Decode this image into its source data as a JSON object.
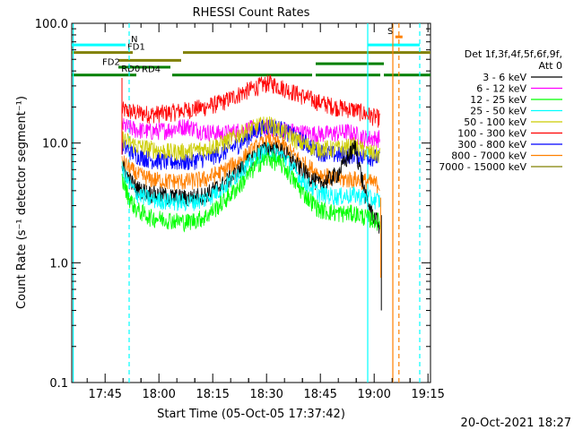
{
  "chart_data": {
    "type": "line",
    "title": "RHESSI Count Rates",
    "xlabel": "Start Time (05-Oct-05 17:37:42)",
    "ylabel": "Count Rate (s⁻¹ detector segment⁻¹)",
    "yscale": "log",
    "ylim": [
      0.1,
      100
    ],
    "xlim_minutes": [
      -2,
      98
    ],
    "x_ticks": [
      "17:45",
      "18:00",
      "18:15",
      "18:30",
      "18:45",
      "19:00",
      "19:15"
    ],
    "x_tick_minutes": [
      7.3,
      22.3,
      37.3,
      52.3,
      67.3,
      82.3,
      97.3
    ],
    "y_ticks": [
      "0.1",
      "1.0",
      "10.0",
      "100.0"
    ],
    "y_tick_values": [
      0.1,
      1,
      10,
      100
    ],
    "legend_header": [
      "Det 1f,3f,4f,5f,6f,9f,",
      "Att 0"
    ],
    "series": [
      {
        "name": "3 - 6 keV",
        "color": "#000000",
        "x": [
          12,
          14,
          16,
          20,
          25,
          30,
          35,
          40,
          45,
          50,
          53,
          57,
          62,
          67,
          72,
          77,
          80,
          82,
          84
        ],
        "y": [
          6.5,
          5.0,
          4.2,
          3.8,
          3.6,
          3.5,
          3.7,
          4.5,
          6.0,
          8.5,
          9.0,
          8.5,
          6.0,
          4.5,
          5.5,
          9.5,
          3.5,
          2.5,
          2.0
        ]
      },
      {
        "name": "6 - 12 keV",
        "color": "#ff00ff",
        "x": [
          12,
          16,
          20,
          25,
          30,
          35,
          40,
          45,
          50,
          55,
          60,
          65,
          70,
          75,
          80,
          84
        ],
        "y": [
          14,
          13,
          12.5,
          13,
          14,
          12.5,
          12,
          12.8,
          13.5,
          13.5,
          12.5,
          12,
          12,
          12.5,
          11,
          11
        ]
      },
      {
        "name": "12 - 25 keV",
        "color": "#00ff00",
        "x": [
          12,
          14,
          16,
          20,
          25,
          30,
          35,
          40,
          45,
          50,
          53,
          57,
          62,
          67,
          72,
          77,
          80,
          82,
          84
        ],
        "y": [
          5.0,
          3.5,
          2.8,
          2.4,
          2.3,
          2.2,
          2.4,
          3.2,
          4.5,
          6.8,
          7.5,
          6.5,
          4.0,
          2.8,
          2.6,
          2.6,
          2.4,
          2.3,
          2.2
        ]
      },
      {
        "name": "25 - 50 keV",
        "color": "#00ffff",
        "x": [
          12,
          14,
          16,
          20,
          25,
          30,
          35,
          40,
          45,
          50,
          53,
          57,
          62,
          67,
          72,
          77,
          80,
          82,
          84
        ],
        "y": [
          6.0,
          4.5,
          3.8,
          3.4,
          3.3,
          3.2,
          3.4,
          4.2,
          5.8,
          8.0,
          8.8,
          7.8,
          5.0,
          3.8,
          3.6,
          3.7,
          3.5,
          3.4,
          3.3
        ]
      },
      {
        "name": "50 - 100 keV",
        "color": "#cccc00",
        "x": [
          12,
          16,
          20,
          25,
          30,
          35,
          40,
          45,
          50,
          53,
          57,
          62,
          67,
          72,
          77,
          80,
          84
        ],
        "y": [
          11,
          9.5,
          9.0,
          8.5,
          8.5,
          9.0,
          10,
          12,
          14,
          14.5,
          12.5,
          10,
          9,
          9,
          9.5,
          8.5,
          8
        ]
      },
      {
        "name": "100 - 300 keV",
        "color": "#ff0000",
        "x": [
          12,
          16,
          20,
          25,
          30,
          35,
          40,
          45,
          50,
          53,
          57,
          62,
          67,
          72,
          77,
          80,
          84
        ],
        "y": [
          19,
          18,
          17.5,
          18,
          19,
          20,
          22,
          26,
          30,
          32,
          29,
          25,
          22,
          20,
          19,
          17.5,
          16
        ]
      },
      {
        "name": "300 - 800 keV",
        "color": "#0000ff",
        "x": [
          12,
          16,
          20,
          25,
          30,
          35,
          40,
          45,
          50,
          53,
          57,
          62,
          67,
          72,
          77,
          80,
          84
        ],
        "y": [
          9.5,
          8.0,
          7.3,
          7.0,
          7.0,
          7.5,
          8.3,
          10,
          13,
          14,
          13,
          10.5,
          8.5,
          8.0,
          8.0,
          7.8,
          7.5
        ]
      },
      {
        "name": "800 - 7000 keV",
        "color": "#ff8000",
        "x": [
          12,
          16,
          20,
          25,
          30,
          35,
          40,
          45,
          50,
          53,
          57,
          62,
          67,
          72,
          77,
          80,
          84
        ],
        "y": [
          7.0,
          5.5,
          5.0,
          4.8,
          4.8,
          5.0,
          5.8,
          7.2,
          9.5,
          10.5,
          9.5,
          7.0,
          5.5,
          5.0,
          5.0,
          4.8,
          4.5
        ]
      },
      {
        "name": "7000 - 15000 keV",
        "color": "#808000",
        "x": [],
        "y": []
      }
    ],
    "annotations": [
      {
        "text": "N",
        "color": "#00ffff",
        "x_start": -2,
        "x_end": 14,
        "level": 66
      },
      {
        "text": "FD1",
        "color": "#808000",
        "x_start": -2,
        "x_end": 98,
        "level": 57
      },
      {
        "text": "FD2",
        "color": "#808000",
        "x_start": 11,
        "x_end": 41,
        "level": 49
      },
      {
        "text": "RD0",
        "color": "#008000",
        "x_start": 11,
        "x_end": 38,
        "level": 43
      },
      {
        "text": "RD4",
        "color": "#008000",
        "x_start": -2,
        "x_end": 98,
        "level": 37
      },
      {
        "text": "S",
        "color": "#ff8000",
        "x_start": 88,
        "x_end": 90,
        "level": 77
      }
    ],
    "footer_date": "20-Oct-2021 18:27"
  },
  "colors": {
    "cyan": "#00ffff",
    "orange": "#ff8000",
    "olive": "#808000",
    "green": "#008000"
  }
}
